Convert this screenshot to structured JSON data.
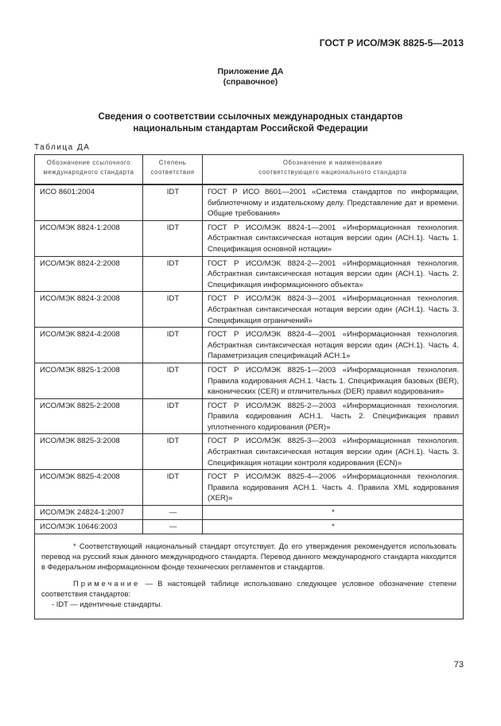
{
  "header": {
    "doc_id": "ГОСТ Р ИСО/МЭК 8825-5—2013"
  },
  "annex": {
    "title": "Приложение ДА",
    "subtitle": "(справочное)"
  },
  "section_title": {
    "line1": "Сведения о соответствии ссылочных международных стандартов",
    "line2": "национальным стандартам Российской Федерации"
  },
  "table": {
    "label": "Таблица ДА",
    "headers": [
      {
        "line1": "Обозначение ссылочного",
        "line2": "международного стандарта"
      },
      {
        "line1": "Степень",
        "line2": "соответствия"
      },
      {
        "line1": "Обозначение и наименование",
        "line2": "соответствующего национального стандарта"
      }
    ],
    "rows": [
      {
        "ref": "ИСО 8601:2004",
        "degree": "IDT",
        "national": "ГОСТ Р ИСО 8601—2001 «Система стандартов по информации, библиотечному и издательскому делу. Представление дат и времени. Общие требования»"
      },
      {
        "ref": "ИСО/МЭК 8824-1:2008",
        "degree": "IDT",
        "national": "ГОСТ Р ИСО/МЭК 8824-1—2001 «Информационная технология. Абстрактная синтаксическая нотация версии один (АСН.1). Часть 1. Спецификация основной нотации»"
      },
      {
        "ref": "ИСО/МЭК 8824-2:2008",
        "degree": "IDT",
        "national": "ГОСТ Р ИСО/МЭК 8824-2—2001 «Информационная технология. Абстрактная синтаксическая нотация версии один (АСН.1). Часть 2. Спецификация информационного объекта»"
      },
      {
        "ref": "ИСО/МЭК 8824-3:2008",
        "degree": "IDT",
        "national": "ГОСТ Р ИСО/МЭК 8824-3—2001 «Информационная технология. Абстрактная синтаксическая нотация версии один (АСН.1). Часть 3. Спецификация ограничений»"
      },
      {
        "ref": "ИСО/МЭК 8824-4:2008",
        "degree": "IDT",
        "national": "ГОСТ Р ИСО/МЭК 8824-4—2001 «Информационная технология. Абстрактная синтаксическая нотация версии один (АСН.1). Часть 4. Параметризация спецификаций АСН.1»"
      },
      {
        "ref": "ИСО/МЭК 8825-1:2008",
        "degree": "IDT",
        "national": "ГОСТ Р ИСО/МЭК 8825-1—2003 «Информационная технология. Правила кодирования АСН.1. Часть 1. Спецификация базовых (BER), канонических (CER) и отличительных (DER) правил кодирования»"
      },
      {
        "ref": "ИСО/МЭК 8825-2:2008",
        "degree": "IDT",
        "national": "ГОСТ Р ИСО/МЭК 8825-2—2003 «Информационная технология. Правила кодирования АСН.1. Часть 2. Спецификация правил уплотненного кодирования (PER)»"
      },
      {
        "ref": "ИСО/МЭК 8825-3:2008",
        "degree": "IDT",
        "national": "ГОСТ Р ИСО/МЭК 8825-3—2003 «Информационная технология. Абстрактная синтаксическая нотация версии один (АСН.1). Часть 3. Спецификация нотации контроля кодирования (ECN)»"
      },
      {
        "ref": "ИСО/МЭК 8825-4:2008",
        "degree": "IDT",
        "national": "ГОСТ Р ИСО/МЭК 8825-4—2006 «Информационная технология. Правила кодирования АСН.1. Часть 4. Правила XML кодирования (XER)»"
      },
      {
        "ref": "ИСО/МЭК 24824-1:2007",
        "degree": "—",
        "national": "*"
      },
      {
        "ref": "ИСО/МЭК 10646:2003",
        "degree": "—",
        "national": "*"
      }
    ],
    "footnote": "* Соответствующий национальный стандарт отсутствует. До его утверждения рекомендуется использовать перевод на русский язык данного международного стандарта. Перевод данного международного стандарта находится в Федеральном информационном фонде технических регламентов и стандартов.",
    "note_label": "Примечание",
    "note_text": " — В настоящей таблице использовано следующее условное обозначение степени соответствия стандартов:",
    "note_item": "- IDT — идентичные стандарты."
  },
  "page_number": "73"
}
